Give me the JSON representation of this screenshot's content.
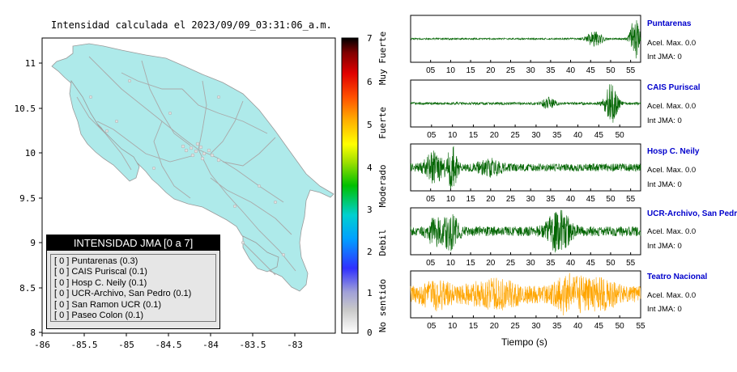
{
  "map": {
    "title": "Intensidad calculada el 2023/09/09_03:31:06_a.m.",
    "x_ticks": [
      "-86",
      "-85.5",
      "-85",
      "-84.5",
      "-84",
      "-83.5",
      "-83"
    ],
    "y_ticks": [
      "11",
      "10.5",
      "10",
      "9.5",
      "9",
      "8.5",
      "8"
    ]
  },
  "colorbar": {
    "ticks": [
      "7",
      "6",
      "5",
      "4",
      "3",
      "2",
      "1",
      "0"
    ],
    "labels": [
      "Muy Fuerte",
      "Fuerte",
      "Moderado",
      "Debil",
      "No sentido"
    ]
  },
  "legend": {
    "title": "INTENSIDAD JMA [0 a 7]",
    "rows": [
      "[ 0 ]  Puntarenas (0.3)",
      "[ 0 ]  CAIS Puriscal (0.1)",
      "[ 0 ]  Hosp C. Neily (0.1)",
      "[ 0 ]  UCR-Archivo, San Pedro (0.1)",
      "[ 0 ]  San Ramon UCR (0.1)",
      "[ 0 ]  Paseo Colon (0.1)"
    ]
  },
  "stations": [
    {
      "name": "Puntarenas",
      "accel": "Acel. Max. 0.0",
      "jma": "Int JMA: 0",
      "color": "#006400",
      "ticks": [
        "05",
        "10",
        "15",
        "20",
        "25",
        "30",
        "35",
        "40",
        "45",
        "50",
        "55"
      ]
    },
    {
      "name": "CAIS Puriscal",
      "accel": "Acel. Max. 0.0",
      "jma": "Int JMA: 0",
      "color": "#006400",
      "ticks": [
        "05",
        "10",
        "15",
        "20",
        "25",
        "30",
        "35",
        "40",
        "45",
        "50"
      ]
    },
    {
      "name": "Hosp C. Neily",
      "accel": "Acel. Max. 0.0",
      "jma": "Int JMA: 0",
      "color": "#006400",
      "ticks": [
        "05",
        "10",
        "15",
        "20",
        "25",
        "30",
        "35",
        "40",
        "45",
        "50",
        "55"
      ]
    },
    {
      "name": "UCR-Archivo, San Pedro",
      "accel": "Acel. Max. 0.0",
      "jma": "Int JMA: 0",
      "color": "#006400",
      "ticks": [
        "05",
        "10",
        "15",
        "20",
        "25",
        "30",
        "35",
        "40",
        "45",
        "50",
        "55"
      ]
    },
    {
      "name": "Teatro Nacional",
      "accel": "Acel. Max. 0.0",
      "jma": "Int JMA: 0",
      "color": "#ffa500",
      "ticks": [
        "05",
        "10",
        "15",
        "20",
        "25",
        "30",
        "35",
        "40",
        "45",
        "50",
        "55"
      ]
    }
  ],
  "x_axis_title": "Tiempo (s)",
  "colors": {
    "land": "#aeeaea",
    "roads": "#a9a9a9",
    "station_label": "#0000cc",
    "trace_green": "#006400",
    "trace_orange": "#ffa500"
  }
}
